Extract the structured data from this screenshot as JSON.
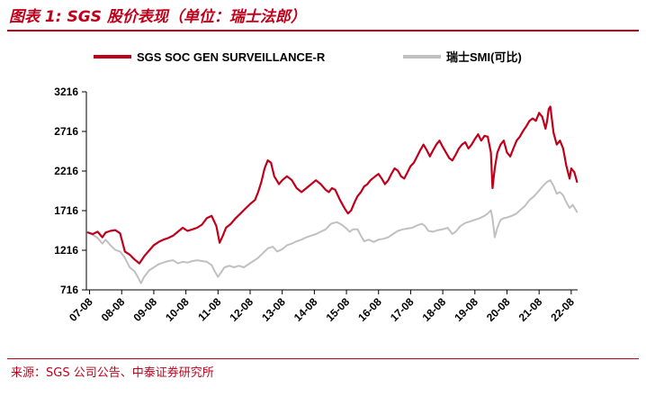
{
  "title": "图表 1:  SGS 股价表现（单位：瑞士法郎）",
  "source": "来源：SGS 公司公告、中泰证券研究所",
  "colors": {
    "accent": "#c0001a",
    "sgs": "#c0001a",
    "smi": "#c0c0c0"
  },
  "chart_data": {
    "type": "line",
    "title": "",
    "xlabel": "",
    "ylabel": "",
    "x_tick_labels": [
      "07-08",
      "08-08",
      "09-08",
      "10-08",
      "11-08",
      "12-08",
      "13-08",
      "14-08",
      "15-08",
      "16-08",
      "17-08",
      "18-08",
      "19-08",
      "20-08",
      "21-08",
      "22-08"
    ],
    "y_ticks": [
      716,
      1216,
      1716,
      2216,
      2716,
      3216
    ],
    "ylim": [
      716,
      3216
    ],
    "xlim": [
      2007.5,
      2022.8
    ],
    "grid": false,
    "legend_position": "top",
    "series": [
      {
        "name": "SGS SOC GEN SURVEILLANCE-R",
        "color": "#c0001a",
        "points": [
          [
            2007.55,
            1440
          ],
          [
            2007.7,
            1420
          ],
          [
            2007.85,
            1450
          ],
          [
            2008.0,
            1380
          ],
          [
            2008.1,
            1440
          ],
          [
            2008.25,
            1460
          ],
          [
            2008.4,
            1470
          ],
          [
            2008.55,
            1430
          ],
          [
            2008.7,
            1200
          ],
          [
            2008.85,
            1160
          ],
          [
            2009.0,
            1100
          ],
          [
            2009.15,
            1050
          ],
          [
            2009.3,
            1140
          ],
          [
            2009.45,
            1210
          ],
          [
            2009.6,
            1280
          ],
          [
            2009.75,
            1320
          ],
          [
            2009.9,
            1350
          ],
          [
            2010.05,
            1370
          ],
          [
            2010.2,
            1400
          ],
          [
            2010.35,
            1450
          ],
          [
            2010.5,
            1500
          ],
          [
            2010.65,
            1460
          ],
          [
            2010.8,
            1480
          ],
          [
            2010.95,
            1500
          ],
          [
            2011.1,
            1540
          ],
          [
            2011.25,
            1620
          ],
          [
            2011.4,
            1650
          ],
          [
            2011.55,
            1520
          ],
          [
            2011.65,
            1310
          ],
          [
            2011.75,
            1400
          ],
          [
            2011.85,
            1500
          ],
          [
            2012.0,
            1550
          ],
          [
            2012.15,
            1620
          ],
          [
            2012.3,
            1680
          ],
          [
            2012.45,
            1740
          ],
          [
            2012.6,
            1800
          ],
          [
            2012.75,
            1850
          ],
          [
            2012.85,
            1950
          ],
          [
            2012.95,
            2080
          ],
          [
            2013.05,
            2250
          ],
          [
            2013.15,
            2350
          ],
          [
            2013.25,
            2320
          ],
          [
            2013.35,
            2150
          ],
          [
            2013.5,
            2050
          ],
          [
            2013.6,
            2100
          ],
          [
            2013.75,
            2150
          ],
          [
            2013.9,
            2100
          ],
          [
            2014.05,
            2000
          ],
          [
            2014.2,
            1950
          ],
          [
            2014.35,
            2000
          ],
          [
            2014.5,
            2050
          ],
          [
            2014.65,
            2100
          ],
          [
            2014.8,
            2050
          ],
          [
            2014.95,
            1980
          ],
          [
            2015.05,
            1950
          ],
          [
            2015.15,
            2000
          ],
          [
            2015.25,
            1980
          ],
          [
            2015.4,
            1850
          ],
          [
            2015.55,
            1740
          ],
          [
            2015.65,
            1680
          ],
          [
            2015.75,
            1720
          ],
          [
            2015.85,
            1820
          ],
          [
            2015.95,
            1900
          ],
          [
            2016.05,
            1950
          ],
          [
            2016.15,
            2020
          ],
          [
            2016.25,
            2050
          ],
          [
            2016.35,
            2100
          ],
          [
            2016.5,
            2150
          ],
          [
            2016.6,
            2180
          ],
          [
            2016.7,
            2120
          ],
          [
            2016.8,
            2050
          ],
          [
            2016.9,
            2100
          ],
          [
            2017.0,
            2180
          ],
          [
            2017.1,
            2250
          ],
          [
            2017.2,
            2220
          ],
          [
            2017.3,
            2150
          ],
          [
            2017.4,
            2120
          ],
          [
            2017.5,
            2200
          ],
          [
            2017.6,
            2280
          ],
          [
            2017.7,
            2320
          ],
          [
            2017.8,
            2400
          ],
          [
            2017.9,
            2480
          ],
          [
            2018.0,
            2550
          ],
          [
            2018.1,
            2480
          ],
          [
            2018.2,
            2400
          ],
          [
            2018.3,
            2480
          ],
          [
            2018.4,
            2550
          ],
          [
            2018.5,
            2600
          ],
          [
            2018.6,
            2520
          ],
          [
            2018.7,
            2450
          ],
          [
            2018.8,
            2380
          ],
          [
            2018.9,
            2350
          ],
          [
            2019.0,
            2420
          ],
          [
            2019.1,
            2500
          ],
          [
            2019.2,
            2550
          ],
          [
            2019.3,
            2580
          ],
          [
            2019.4,
            2500
          ],
          [
            2019.5,
            2550
          ],
          [
            2019.6,
            2620
          ],
          [
            2019.7,
            2680
          ],
          [
            2019.8,
            2600
          ],
          [
            2019.9,
            2660
          ],
          [
            2020.0,
            2650
          ],
          [
            2020.1,
            2450
          ],
          [
            2020.15,
            2000
          ],
          [
            2020.22,
            2250
          ],
          [
            2020.3,
            2450
          ],
          [
            2020.4,
            2550
          ],
          [
            2020.5,
            2600
          ],
          [
            2020.6,
            2450
          ],
          [
            2020.7,
            2400
          ],
          [
            2020.8,
            2500
          ],
          [
            2020.9,
            2600
          ],
          [
            2021.0,
            2650
          ],
          [
            2021.1,
            2720
          ],
          [
            2021.2,
            2780
          ],
          [
            2021.3,
            2850
          ],
          [
            2021.4,
            2880
          ],
          [
            2021.5,
            2850
          ],
          [
            2021.6,
            2950
          ],
          [
            2021.7,
            2900
          ],
          [
            2021.8,
            2750
          ],
          [
            2021.85,
            2850
          ],
          [
            2021.9,
            3000
          ],
          [
            2021.95,
            3030
          ],
          [
            2022.05,
            2700
          ],
          [
            2022.15,
            2550
          ],
          [
            2022.25,
            2600
          ],
          [
            2022.35,
            2500
          ],
          [
            2022.45,
            2280
          ],
          [
            2022.55,
            2120
          ],
          [
            2022.6,
            2250
          ],
          [
            2022.7,
            2200
          ],
          [
            2022.78,
            2080
          ]
        ]
      },
      {
        "name": "瑞士SMI(可比)",
        "color": "#c0c0c0",
        "points": [
          [
            2007.55,
            1440
          ],
          [
            2007.7,
            1410
          ],
          [
            2007.85,
            1370
          ],
          [
            2008.0,
            1300
          ],
          [
            2008.1,
            1350
          ],
          [
            2008.25,
            1280
          ],
          [
            2008.4,
            1220
          ],
          [
            2008.55,
            1200
          ],
          [
            2008.7,
            1120
          ],
          [
            2008.85,
            1000
          ],
          [
            2009.0,
            950
          ],
          [
            2009.1,
            880
          ],
          [
            2009.2,
            800
          ],
          [
            2009.3,
            880
          ],
          [
            2009.45,
            960
          ],
          [
            2009.6,
            1000
          ],
          [
            2009.75,
            1040
          ],
          [
            2009.9,
            1060
          ],
          [
            2010.05,
            1080
          ],
          [
            2010.2,
            1090
          ],
          [
            2010.35,
            1050
          ],
          [
            2010.5,
            1070
          ],
          [
            2010.65,
            1060
          ],
          [
            2010.8,
            1080
          ],
          [
            2010.95,
            1090
          ],
          [
            2011.1,
            1080
          ],
          [
            2011.25,
            1070
          ],
          [
            2011.4,
            1030
          ],
          [
            2011.5,
            950
          ],
          [
            2011.6,
            880
          ],
          [
            2011.7,
            940
          ],
          [
            2011.8,
            1000
          ],
          [
            2011.95,
            1020
          ],
          [
            2012.1,
            1000
          ],
          [
            2012.25,
            1020
          ],
          [
            2012.4,
            1000
          ],
          [
            2012.55,
            1040
          ],
          [
            2012.7,
            1080
          ],
          [
            2012.85,
            1120
          ],
          [
            2013.0,
            1180
          ],
          [
            2013.15,
            1240
          ],
          [
            2013.3,
            1260
          ],
          [
            2013.45,
            1200
          ],
          [
            2013.6,
            1230
          ],
          [
            2013.75,
            1280
          ],
          [
            2013.9,
            1300
          ],
          [
            2014.05,
            1330
          ],
          [
            2014.2,
            1350
          ],
          [
            2014.35,
            1380
          ],
          [
            2014.5,
            1400
          ],
          [
            2014.65,
            1420
          ],
          [
            2014.8,
            1450
          ],
          [
            2014.95,
            1480
          ],
          [
            2015.05,
            1520
          ],
          [
            2015.12,
            1550
          ],
          [
            2015.2,
            1560
          ],
          [
            2015.3,
            1570
          ],
          [
            2015.45,
            1540
          ],
          [
            2015.6,
            1490
          ],
          [
            2015.7,
            1450
          ],
          [
            2015.8,
            1480
          ],
          [
            2015.95,
            1480
          ],
          [
            2016.05,
            1400
          ],
          [
            2016.15,
            1330
          ],
          [
            2016.3,
            1350
          ],
          [
            2016.45,
            1320
          ],
          [
            2016.6,
            1350
          ],
          [
            2016.75,
            1360
          ],
          [
            2016.9,
            1380
          ],
          [
            2017.05,
            1420
          ],
          [
            2017.2,
            1460
          ],
          [
            2017.35,
            1480
          ],
          [
            2017.5,
            1490
          ],
          [
            2017.65,
            1500
          ],
          [
            2017.8,
            1530
          ],
          [
            2017.95,
            1550
          ],
          [
            2018.05,
            1520
          ],
          [
            2018.15,
            1460
          ],
          [
            2018.3,
            1450
          ],
          [
            2018.45,
            1470
          ],
          [
            2018.6,
            1480
          ],
          [
            2018.75,
            1500
          ],
          [
            2018.9,
            1420
          ],
          [
            2019.0,
            1450
          ],
          [
            2019.15,
            1520
          ],
          [
            2019.3,
            1560
          ],
          [
            2019.45,
            1580
          ],
          [
            2019.6,
            1600
          ],
          [
            2019.75,
            1620
          ],
          [
            2019.9,
            1650
          ],
          [
            2020.0,
            1680
          ],
          [
            2020.1,
            1720
          ],
          [
            2020.15,
            1620
          ],
          [
            2020.22,
            1380
          ],
          [
            2020.3,
            1500
          ],
          [
            2020.4,
            1600
          ],
          [
            2020.5,
            1620
          ],
          [
            2020.6,
            1630
          ],
          [
            2020.75,
            1650
          ],
          [
            2020.9,
            1680
          ],
          [
            2021.0,
            1720
          ],
          [
            2021.15,
            1770
          ],
          [
            2021.3,
            1850
          ],
          [
            2021.45,
            1900
          ],
          [
            2021.6,
            1970
          ],
          [
            2021.75,
            2040
          ],
          [
            2021.85,
            2080
          ],
          [
            2021.95,
            2100
          ],
          [
            2022.05,
            2030
          ],
          [
            2022.15,
            1930
          ],
          [
            2022.25,
            1950
          ],
          [
            2022.35,
            1910
          ],
          [
            2022.45,
            1820
          ],
          [
            2022.55,
            1750
          ],
          [
            2022.65,
            1790
          ],
          [
            2022.78,
            1700
          ]
        ]
      }
    ]
  }
}
